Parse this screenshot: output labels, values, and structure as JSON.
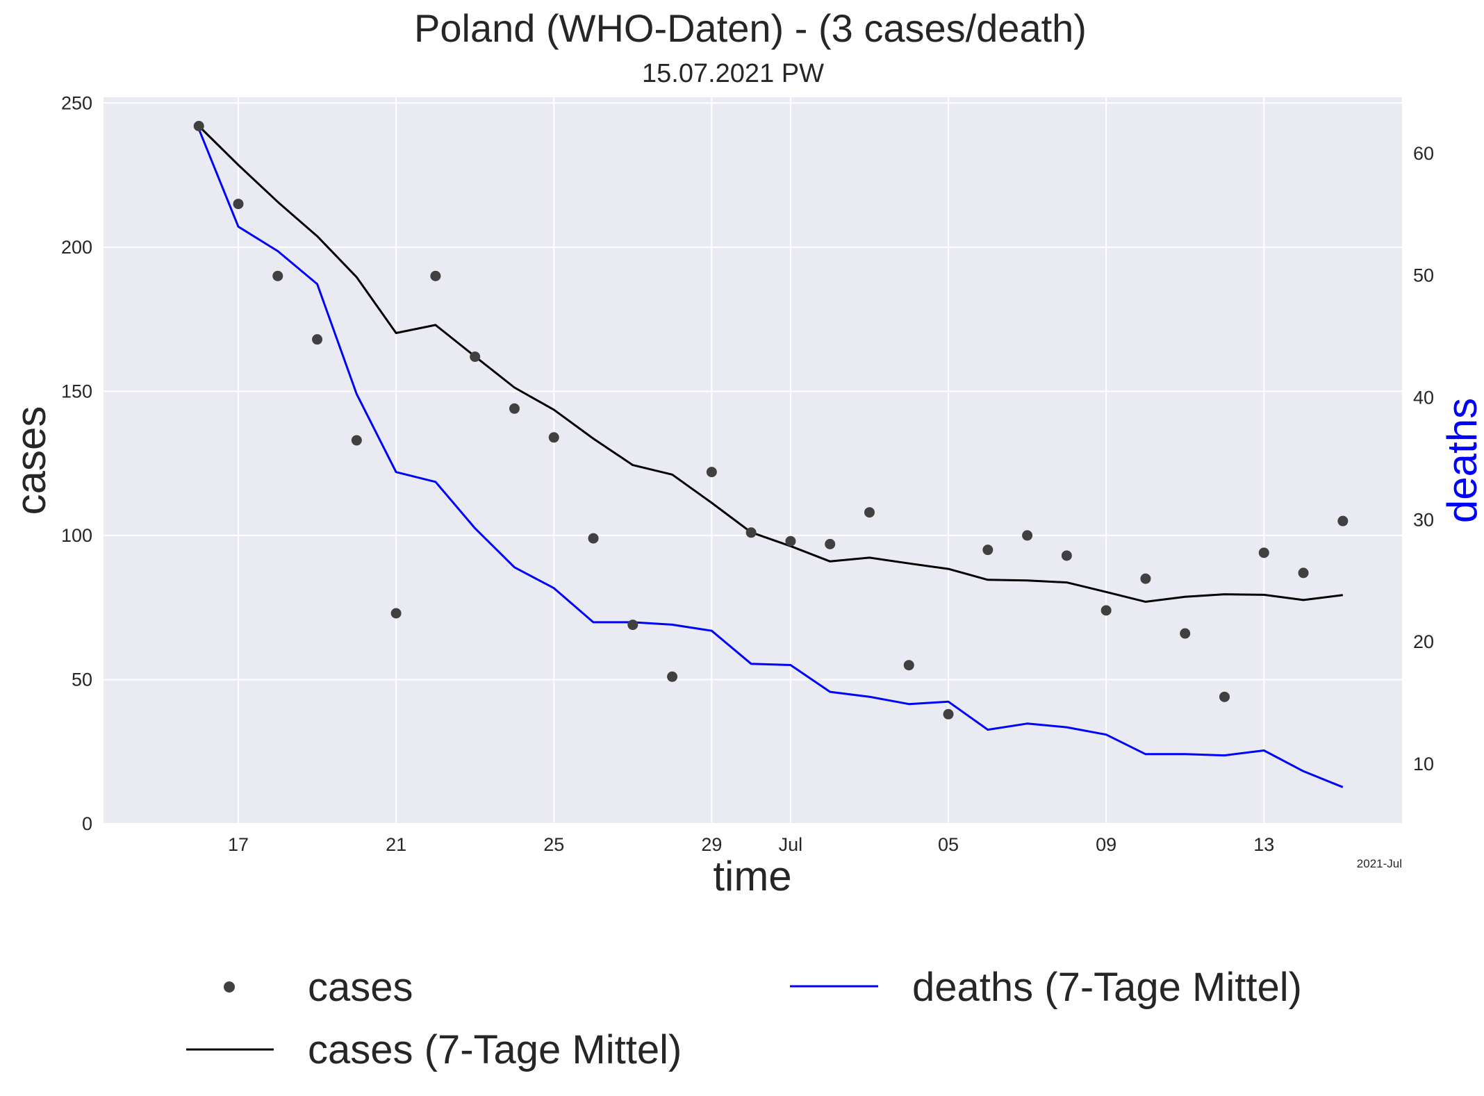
{
  "chart_data": {
    "type": "line",
    "title": "Poland (WHO-Daten) - (3 cases/death)",
    "subtitle": "15.07.2021 PW",
    "xlabel": "time",
    "ylabel": "cases",
    "y2label": "deaths",
    "x_corner_label": "2021-Jul",
    "x_dates": [
      "2021-06-16",
      "2021-06-17",
      "2021-06-18",
      "2021-06-19",
      "2021-06-20",
      "2021-06-21",
      "2021-06-22",
      "2021-06-23",
      "2021-06-24",
      "2021-06-25",
      "2021-06-26",
      "2021-06-27",
      "2021-06-28",
      "2021-06-29",
      "2021-06-30",
      "2021-07-01",
      "2021-07-02",
      "2021-07-03",
      "2021-07-04",
      "2021-07-05",
      "2021-07-06",
      "2021-07-07",
      "2021-07-08",
      "2021-07-09",
      "2021-07-10",
      "2021-07-11",
      "2021-07-12",
      "2021-07-13",
      "2021-07-14",
      "2021-07-15"
    ],
    "xlim": [
      "2021-06-13T14:00",
      "2021-07-16T12:00"
    ],
    "x_ticks": [
      {
        "date": "2021-06-17",
        "label": "17"
      },
      {
        "date": "2021-06-21",
        "label": "21"
      },
      {
        "date": "2021-06-25",
        "label": "25"
      },
      {
        "date": "2021-06-29",
        "label": "29"
      },
      {
        "date": "2021-07-01",
        "label": "Jul"
      },
      {
        "date": "2021-07-05",
        "label": "05"
      },
      {
        "date": "2021-07-09",
        "label": "09"
      },
      {
        "date": "2021-07-13",
        "label": "13"
      }
    ],
    "ylim": [
      0,
      252
    ],
    "y_ticks": [
      0,
      50,
      100,
      150,
      200,
      250
    ],
    "y2lim": [
      5.1,
      64.6
    ],
    "y2_ticks": [
      10,
      20,
      30,
      40,
      50,
      60
    ],
    "grid": true,
    "legend_position": "below",
    "series": [
      {
        "name": "cases",
        "axis": "left",
        "style": "scatter",
        "color": "#404040",
        "values": [
          242,
          215,
          190,
          168,
          133,
          73,
          190,
          162,
          144,
          134,
          99,
          69,
          51,
          122,
          101,
          98,
          97,
          108,
          55,
          38,
          95,
          100,
          93,
          74,
          85,
          66,
          44,
          94,
          87,
          105
        ]
      },
      {
        "name": "cases (7-Tage Mittel)",
        "axis": "left",
        "style": "line",
        "color": "#000000",
        "values": [
          242,
          228.5,
          215.7,
          203.8,
          189.6,
          170.2,
          173.0,
          162.1,
          151.3,
          143.6,
          133.6,
          124.4,
          121.1,
          111.3,
          101.1,
          96.3,
          91.0,
          92.3,
          90.3,
          88.4,
          84.6,
          84.4,
          83.7,
          80.4,
          77.0,
          78.7,
          79.6,
          79.4,
          77.6,
          79.3
        ]
      },
      {
        "name": "deaths (7-Tage Mittel)",
        "axis": "right",
        "style": "line",
        "color": "#0000ff",
        "values": [
          62.0,
          54.0,
          52.0,
          49.3,
          40.3,
          33.9,
          33.1,
          29.3,
          26.1,
          24.4,
          21.6,
          21.6,
          21.4,
          20.9,
          18.2,
          18.1,
          15.9,
          15.5,
          14.9,
          15.1,
          12.8,
          13.3,
          13.0,
          12.4,
          10.8,
          10.8,
          10.7,
          11.1,
          9.4,
          8.1
        ]
      }
    ]
  }
}
